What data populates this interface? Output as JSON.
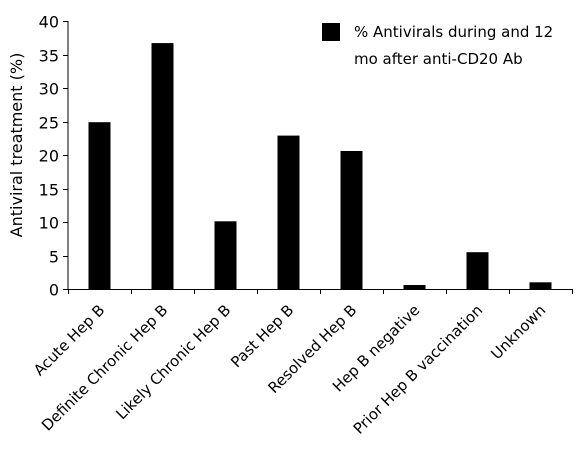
{
  "chart_data": {
    "type": "bar",
    "title": "",
    "xlabel": "",
    "ylabel": "Antiviral treatment (%)",
    "ylim": [
      0,
      40
    ],
    "yticks": [
      0,
      5,
      10,
      15,
      20,
      25,
      30,
      35,
      40
    ],
    "grid": false,
    "legend_position": "top-right",
    "categories": [
      "Acute Hep B",
      "Definite Chronic Hep B",
      "Likely Chronic Hep B",
      "Past Hep B",
      "Resolved Hep B",
      "Hep B negative",
      "Prior Hep B vaccination",
      "Unknown"
    ],
    "series": [
      {
        "name": "% Antivirals during and 12 mo after anti-CD20 Ab",
        "name_lines": [
          "% Antivirals during and 12",
          "mo after anti-CD20 Ab"
        ],
        "color": "#000000",
        "values": [
          24.9,
          36.7,
          10.1,
          22.9,
          20.6,
          0.6,
          5.5,
          1.0
        ]
      }
    ]
  }
}
